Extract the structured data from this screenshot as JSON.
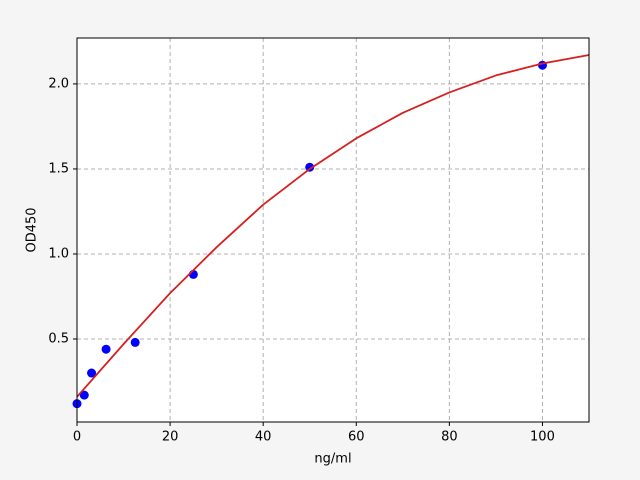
{
  "chart_data": {
    "type": "scatter",
    "xlabel": "ng/ml",
    "ylabel": "OD450",
    "xlim": [
      0,
      110
    ],
    "ylim": [
      0.012,
      2.27
    ],
    "xticks": [
      0,
      20,
      40,
      60,
      80,
      100
    ],
    "yticks": [
      0.5,
      {
        "value": 1,
        "label": "1.0"
      },
      1.5,
      {
        "value": 2,
        "label": "2.0"
      }
    ],
    "grid": true,
    "series": [
      {
        "mode": "markers",
        "color": "#0000ff",
        "x": [
          0,
          1.56,
          3.125,
          6.25,
          12.5,
          25,
          50,
          100
        ],
        "values": [
          0.12,
          0.17,
          0.3,
          0.44,
          0.48,
          0.88,
          1.51,
          2.11
        ]
      },
      {
        "mode": "line",
        "color": "#d62020",
        "x": [
          0,
          10,
          20,
          30,
          40,
          50,
          60,
          70,
          80,
          90,
          100,
          110
        ],
        "values": [
          0.16,
          0.47,
          0.77,
          1.04,
          1.29,
          1.5,
          1.68,
          1.83,
          1.95,
          2.05,
          2.12,
          2.17
        ]
      }
    ]
  }
}
